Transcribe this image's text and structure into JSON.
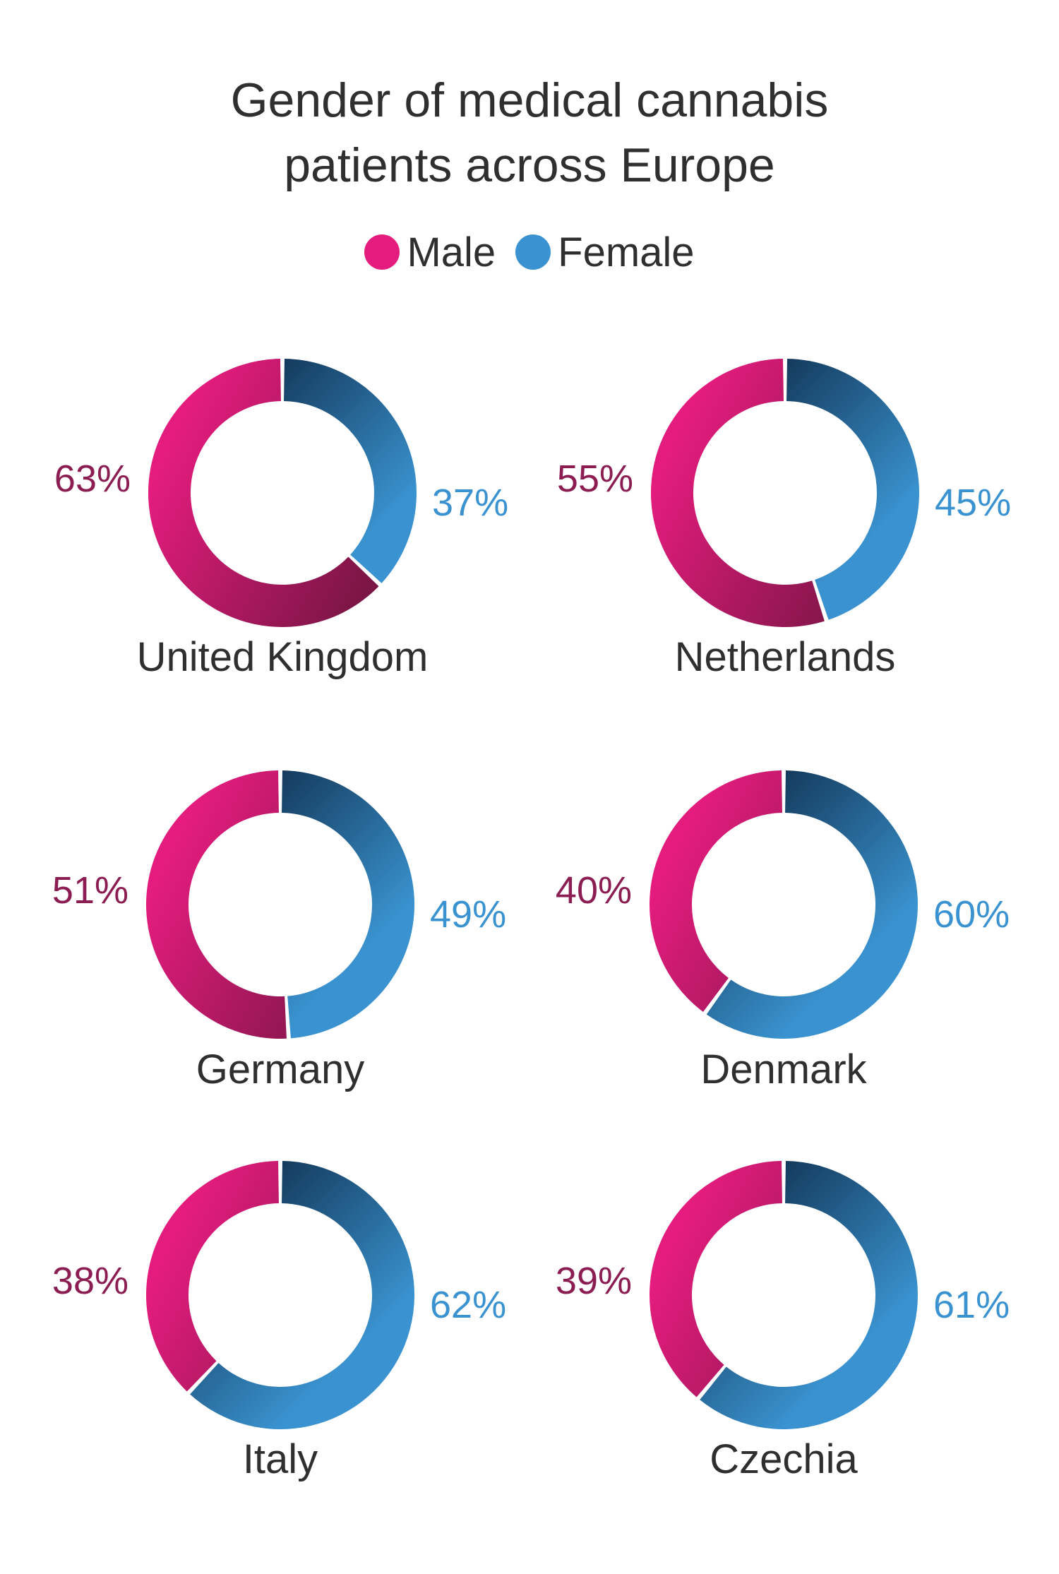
{
  "chart_data": {
    "type": "pie",
    "title_lines": [
      "Gender of medical cannabis",
      "patients across Europe"
    ],
    "legend": [
      {
        "name": "Male",
        "color": "#e31c7d"
      },
      {
        "name": "Female",
        "color": "#3a93d0"
      }
    ],
    "series_names": [
      "Male",
      "Female"
    ],
    "charts": [
      {
        "country": "United Kingdom",
        "male": 63,
        "female": 37,
        "male_label": "63%",
        "female_label": "37%"
      },
      {
        "country": "Netherlands",
        "male": 55,
        "female": 45,
        "male_label": "55%",
        "female_label": "45%"
      },
      {
        "country": "Germany",
        "male": 51,
        "female": 49,
        "male_label": "51%",
        "female_label": "49%"
      },
      {
        "country": "Denmark",
        "male": 40,
        "female": 60,
        "male_label": "40%",
        "female_label": "60%"
      },
      {
        "country": "Italy",
        "male": 38,
        "female": 62,
        "male_label": "38%",
        "female_label": "62%"
      },
      {
        "country": "Czechia",
        "male": 39,
        "female": 61,
        "male_label": "39%",
        "female_label": "61%"
      }
    ]
  },
  "colors": {
    "male": "#e31c7d",
    "male_dark": "#7a1545",
    "male_text": "#8b1d52",
    "female": "#3a93d0",
    "female_dark": "#143a5c",
    "female_text": "#3a93d0",
    "text": "#2f2f2f"
  }
}
